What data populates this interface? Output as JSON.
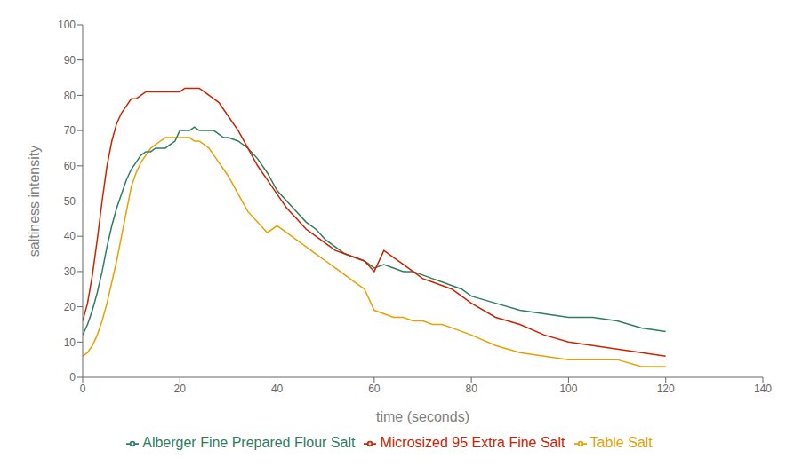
{
  "chart_data": {
    "type": "line",
    "xlabel": "time  (seconds)",
    "ylabel": "saltiness intensity",
    "xlim": [
      0,
      140
    ],
    "ylim": [
      0,
      100
    ],
    "xticks": [
      0,
      20,
      40,
      60,
      80,
      100,
      120,
      140
    ],
    "yticks": [
      0,
      10,
      20,
      30,
      40,
      50,
      60,
      70,
      80,
      90,
      100
    ],
    "grid": false,
    "legend": "bottom",
    "series": [
      {
        "name": "Table Salt",
        "color": "#E8A000",
        "x": [
          0,
          1,
          2,
          3,
          4,
          5,
          6,
          7,
          8,
          9,
          10,
          11,
          12,
          13,
          14,
          15,
          16,
          17,
          18,
          19,
          20,
          21,
          22,
          23,
          24,
          25,
          26,
          27,
          28,
          29,
          30,
          32,
          34,
          36,
          38,
          40,
          42,
          44,
          46,
          48,
          50,
          52,
          54,
          56,
          58,
          60,
          62,
          64,
          66,
          68,
          70,
          72,
          74,
          76,
          80,
          85,
          90,
          95,
          100,
          105,
          110,
          115,
          120
        ],
        "values": [
          6,
          7,
          9,
          12,
          16,
          21,
          27,
          33,
          40,
          47,
          54,
          58,
          61,
          63,
          65,
          66,
          67,
          68,
          68,
          68,
          68,
          68,
          68,
          67,
          67,
          66,
          65,
          63,
          61,
          59,
          57,
          52,
          47,
          44,
          41,
          43,
          41,
          39,
          37,
          35,
          33,
          31,
          29,
          27,
          25,
          19,
          18,
          17,
          17,
          16,
          16,
          15,
          15,
          14,
          12,
          9,
          7,
          6,
          5,
          5,
          5,
          3,
          3
        ]
      },
      {
        "name": "Alberger Fine Prepared Flour Salt",
        "color": "#2E7D5E",
        "x": [
          0,
          1,
          2,
          3,
          4,
          5,
          6,
          7,
          8,
          9,
          10,
          11,
          12,
          13,
          14,
          15,
          16,
          17,
          18,
          19,
          20,
          21,
          22,
          23,
          24,
          25,
          26,
          27,
          28,
          29,
          30,
          32,
          34,
          36,
          38,
          40,
          42,
          44,
          46,
          48,
          50,
          52,
          54,
          56,
          58,
          60,
          62,
          64,
          66,
          68,
          70,
          72,
          74,
          76,
          78,
          80,
          85,
          90,
          95,
          100,
          105,
          110,
          115,
          120
        ],
        "values": [
          12,
          15,
          19,
          24,
          30,
          37,
          43,
          48,
          52,
          56,
          59,
          61,
          63,
          64,
          64,
          65,
          65,
          65,
          66,
          67,
          70,
          70,
          70,
          71,
          70,
          70,
          70,
          70,
          69,
          68,
          68,
          67,
          65,
          62,
          58,
          53,
          50,
          47,
          44,
          42,
          39,
          37,
          35,
          34,
          33,
          31,
          32,
          31,
          30,
          30,
          29,
          28,
          27,
          26,
          25,
          23,
          21,
          19,
          18,
          17,
          17,
          16,
          14,
          13
        ]
      },
      {
        "name": "Microsized 95 Extra Fine Salt",
        "color": "#CC2200",
        "x": [
          0,
          1,
          2,
          3,
          4,
          5,
          6,
          7,
          8,
          9,
          10,
          11,
          12,
          13,
          14,
          15,
          16,
          17,
          18,
          19,
          20,
          21,
          22,
          23,
          24,
          25,
          26,
          27,
          28,
          29,
          30,
          32,
          34,
          36,
          38,
          40,
          42,
          44,
          46,
          48,
          50,
          52,
          54,
          56,
          58,
          60,
          62,
          64,
          66,
          68,
          70,
          72,
          74,
          76,
          78,
          80,
          85,
          90,
          95,
          100,
          105,
          110,
          115,
          120
        ],
        "values": [
          16,
          21,
          29,
          39,
          50,
          60,
          67,
          72,
          75,
          77,
          79,
          79,
          80,
          81,
          81,
          81,
          81,
          81,
          81,
          81,
          81,
          82,
          82,
          82,
          82,
          81,
          80,
          79,
          78,
          76,
          74,
          70,
          65,
          60,
          56,
          52,
          48,
          45,
          42,
          40,
          38,
          36,
          35,
          34,
          33,
          30,
          36,
          34,
          32,
          30,
          28,
          27,
          26,
          25,
          23,
          21,
          17,
          15,
          12,
          10,
          9,
          8,
          7,
          6
        ]
      }
    ]
  }
}
